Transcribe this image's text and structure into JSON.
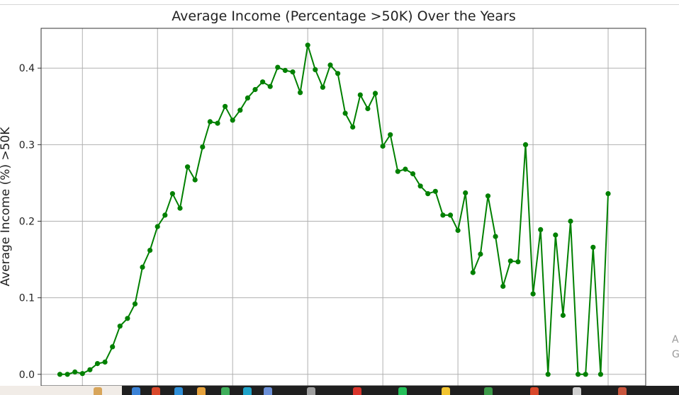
{
  "chart_data": {
    "type": "line",
    "title": "Average Income (Percentage >50K) Over the Years",
    "xlabel": "",
    "ylabel": "Average Income (%) >50K",
    "xlim": [
      14.5,
      95
    ],
    "ylim": [
      -0.015,
      0.452
    ],
    "xticks": [
      20,
      30,
      40,
      50,
      60,
      70,
      80,
      90
    ],
    "yticks": [
      0.0,
      0.1,
      0.2,
      0.3,
      0.4
    ],
    "ytick_labels": [
      "0.0",
      "0.1",
      "0.2",
      "0.3",
      "0.4"
    ],
    "grid": true,
    "series": [
      {
        "name": "",
        "color": "#008000",
        "marker": "circle",
        "x": [
          17,
          18,
          19,
          20,
          21,
          22,
          23,
          24,
          25,
          26,
          27,
          28,
          29,
          30,
          31,
          32,
          33,
          34,
          35,
          36,
          37,
          38,
          39,
          40,
          41,
          42,
          43,
          44,
          45,
          46,
          47,
          48,
          49,
          50,
          51,
          52,
          53,
          54,
          55,
          56,
          57,
          58,
          59,
          60,
          61,
          62,
          63,
          64,
          65,
          66,
          67,
          68,
          69,
          70,
          71,
          72,
          73,
          74,
          75,
          76,
          77,
          78,
          79,
          80,
          81,
          82,
          83,
          84,
          85,
          86,
          87,
          88,
          89,
          90
        ],
        "y": [
          0.0,
          0.0,
          0.003,
          0.001,
          0.006,
          0.014,
          0.016,
          0.036,
          0.063,
          0.073,
          0.092,
          0.14,
          0.162,
          0.193,
          0.208,
          0.236,
          0.217,
          0.271,
          0.254,
          0.297,
          0.33,
          0.328,
          0.35,
          0.332,
          0.345,
          0.361,
          0.372,
          0.382,
          0.376,
          0.401,
          0.397,
          0.395,
          0.368,
          0.43,
          0.398,
          0.375,
          0.404,
          0.393,
          0.341,
          0.323,
          0.365,
          0.347,
          0.367,
          0.298,
          0.313,
          0.265,
          0.268,
          0.262,
          0.246,
          0.236,
          0.239,
          0.208,
          0.208,
          0.188,
          0.237,
          0.133,
          0.157,
          0.233,
          0.18,
          0.115,
          0.148,
          0.147,
          0.3,
          0.105,
          0.189,
          0.0,
          0.182,
          0.077,
          0.2,
          0.0,
          0.0,
          0.166,
          0.0,
          0.236
        ]
      }
    ]
  },
  "side_text": [
    "A",
    "G"
  ],
  "taskbar_icons": [
    {
      "name": "cookie-icon",
      "color": "#d8a55a"
    },
    {
      "name": "files-icon",
      "color": "#3b82d6"
    },
    {
      "name": "chrome-icon",
      "color": "#d9482b"
    },
    {
      "name": "edge-icon",
      "color": "#2f8fd8"
    },
    {
      "name": "folder-icon",
      "color": "#e6a23c"
    },
    {
      "name": "refresh-icon",
      "color": "#3fae5a"
    },
    {
      "name": "globe-icon",
      "color": "#1fa3c9"
    },
    {
      "name": "window-icon",
      "color": "#6b8fd6"
    },
    {
      "name": "grid-icon",
      "color": "#9e9e9e"
    },
    {
      "name": "record-icon",
      "color": "#d9342b"
    },
    {
      "name": "whatsapp-icon",
      "color": "#25c05a"
    },
    {
      "name": "note-icon",
      "color": "#f2c430"
    },
    {
      "name": "leaf-icon",
      "color": "#3c9a49"
    },
    {
      "name": "chrome-icon",
      "color": "#d9482b"
    },
    {
      "name": "table-icon",
      "color": "#cfcfcf"
    },
    {
      "name": "pin-icon",
      "color": "#c8553d"
    }
  ]
}
